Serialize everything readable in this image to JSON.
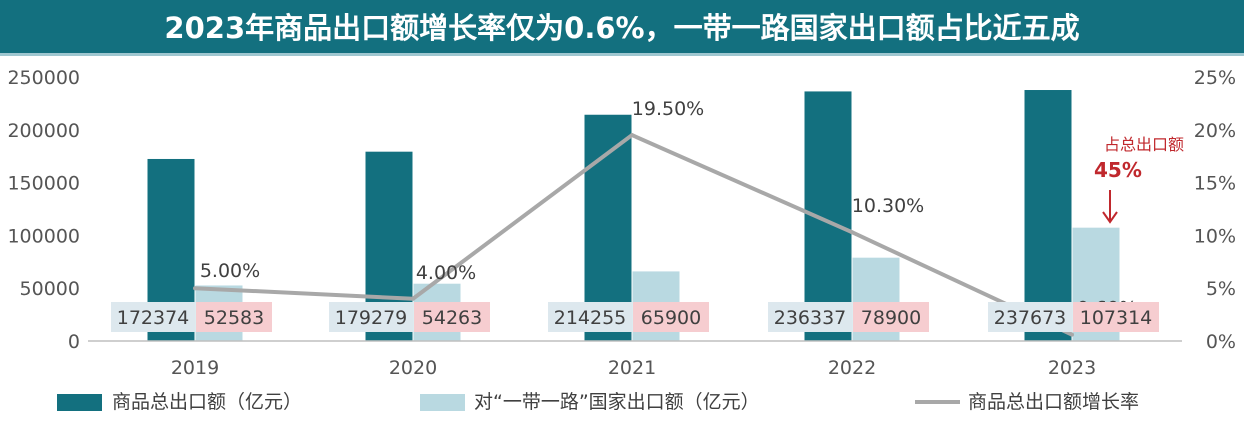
{
  "chart_data": {
    "type": "bar",
    "title": "2023年商品出口额增长率仅为0.6%，一带一路国家出口额占比近五成",
    "categories": [
      "2019",
      "2020",
      "2021",
      "2022",
      "2023"
    ],
    "series": [
      {
        "name": "商品总出口额（亿元）",
        "kind": "bar",
        "axis": "left",
        "color": "#13707f",
        "values": [
          172374,
          179279,
          214255,
          236337,
          237673
        ],
        "labels": [
          "172374",
          "179279",
          "214255",
          "236337",
          "237673"
        ]
      },
      {
        "name": "对“一带一路”国家出口额（亿元）",
        "kind": "bar",
        "axis": "left",
        "color": "#b9d9e1",
        "values": [
          52583,
          54263,
          65900,
          78900,
          107314
        ],
        "labels": [
          "52583",
          "54263",
          "65900",
          "78900",
          "107314"
        ]
      },
      {
        "name": "商品总出口额增长率",
        "kind": "line",
        "axis": "right",
        "color": "#a8a8a8",
        "values": [
          5.0,
          4.0,
          19.5,
          10.3,
          0.6
        ],
        "labels": [
          "5.00%",
          "4.00%",
          "19.50%",
          "10.30%",
          "0.60%"
        ]
      }
    ],
    "y_left": {
      "range": [
        0,
        250000
      ],
      "ticks": [
        "0",
        "50000",
        "100000",
        "150000",
        "200000",
        "250000"
      ]
    },
    "y_right": {
      "range": [
        0,
        25
      ],
      "ticks": [
        "0%",
        "5%",
        "10%",
        "15%",
        "20%",
        "25%"
      ]
    },
    "annotation": {
      "text": "占总出口额",
      "value": "45%",
      "category": "2023",
      "color": "#c0282d"
    },
    "label_box_colors": {
      "total": "#dde8ee",
      "belt": "#f6cdd0"
    },
    "legend_position": "bottom",
    "grid": false
  }
}
